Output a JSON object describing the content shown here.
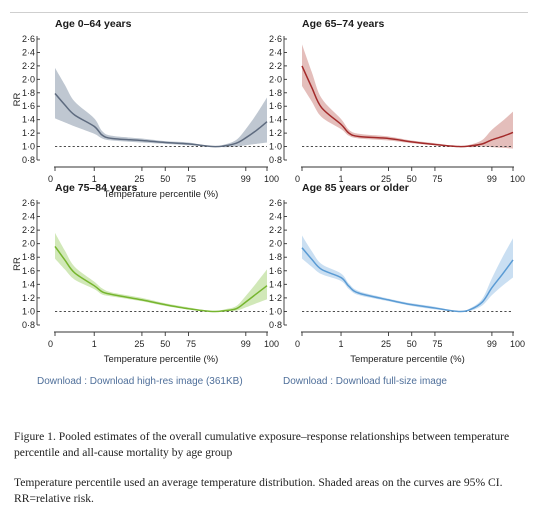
{
  "chart_data": [
    {
      "type": "line",
      "title": "Age 0–64 years",
      "xlabel": "Temperature percentile (%)",
      "ylabel": "RR",
      "x_tick_labels": [
        "0",
        "1",
        "25",
        "50",
        "75",
        "99",
        "100"
      ],
      "y_tick_labels": [
        "0·8",
        "1·0",
        "1·2",
        "1·4",
        "1·6",
        "1·8",
        "2·0",
        "2·2",
        "2·4",
        "2·6"
      ],
      "ylim": [
        0.8,
        2.6
      ],
      "reference_line": 1.0,
      "color": "#5e6b7f",
      "band_color": "#aab4c1",
      "series": [
        {
          "x": [
            0,
            0.25,
            0.5,
            1,
            5,
            10,
            25,
            50,
            75,
            85,
            90,
            95,
            99,
            99.5,
            100
          ],
          "y": [
            1.79,
            1.62,
            1.47,
            1.3,
            1.17,
            1.12,
            1.09,
            1.06,
            1.04,
            1.0,
            1.01,
            1.05,
            1.13,
            1.24,
            1.37
          ],
          "lower": [
            1.42,
            1.36,
            1.3,
            1.19,
            1.12,
            1.09,
            1.06,
            1.04,
            1.02,
            1.0,
            0.99,
            1.0,
            1.02,
            1.04,
            1.06
          ],
          "upper": [
            2.17,
            1.92,
            1.67,
            1.42,
            1.23,
            1.16,
            1.12,
            1.08,
            1.06,
            1.0,
            1.03,
            1.1,
            1.26,
            1.48,
            1.73
          ]
        }
      ]
    },
    {
      "type": "line",
      "title": "Age 65–74 years",
      "xlabel": "",
      "ylabel": "",
      "x_tick_labels": [
        "0",
        "1",
        "25",
        "50",
        "75",
        "99",
        "100"
      ],
      "y_tick_labels": [
        "0·8",
        "1·0",
        "1·2",
        "1·4",
        "1·6",
        "1·8",
        "2·0",
        "2·2",
        "2·4",
        "2·6"
      ],
      "ylim": [
        0.8,
        2.6
      ],
      "reference_line": 1.0,
      "color": "#a32a2a",
      "band_color": "#dba8a4",
      "series": [
        {
          "x": [
            0,
            0.25,
            0.5,
            1,
            5,
            10,
            25,
            50,
            75,
            85,
            90,
            95,
            99,
            99.5,
            100
          ],
          "y": [
            2.2,
            1.88,
            1.58,
            1.33,
            1.2,
            1.15,
            1.12,
            1.07,
            1.03,
            1.0,
            1.01,
            1.04,
            1.1,
            1.15,
            1.21
          ],
          "lower": [
            1.9,
            1.67,
            1.44,
            1.26,
            1.16,
            1.12,
            1.09,
            1.05,
            1.02,
            1.0,
            0.99,
            1.0,
            0.99,
            0.98,
            0.97
          ],
          "upper": [
            2.52,
            2.11,
            1.72,
            1.41,
            1.25,
            1.19,
            1.15,
            1.09,
            1.05,
            1.0,
            1.03,
            1.1,
            1.25,
            1.38,
            1.52
          ]
        }
      ]
    },
    {
      "type": "line",
      "title": "Age 75–84 years",
      "xlabel": "Temperature percentile (%)",
      "ylabel": "RR",
      "x_tick_labels": [
        "0",
        "1",
        "25",
        "50",
        "75",
        "99",
        "100"
      ],
      "y_tick_labels": [
        "0·8",
        "1·0",
        "1·2",
        "1·4",
        "1·6",
        "1·8",
        "2·0",
        "2·2",
        "2·4",
        "2·6"
      ],
      "ylim": [
        0.8,
        2.6
      ],
      "reference_line": 1.0,
      "color": "#76b52e",
      "band_color": "#c2e0a0",
      "series": [
        {
          "x": [
            0,
            0.25,
            0.5,
            1,
            5,
            10,
            25,
            50,
            75,
            85,
            90,
            95,
            99,
            99.5,
            100
          ],
          "y": [
            1.96,
            1.76,
            1.57,
            1.38,
            1.29,
            1.25,
            1.17,
            1.1,
            1.04,
            1.0,
            1.01,
            1.04,
            1.14,
            1.26,
            1.38
          ],
          "lower": [
            1.78,
            1.62,
            1.47,
            1.33,
            1.25,
            1.22,
            1.15,
            1.08,
            1.03,
            1.0,
            1.0,
            1.01,
            1.06,
            1.12,
            1.18
          ],
          "upper": [
            2.16,
            1.9,
            1.66,
            1.44,
            1.34,
            1.28,
            1.2,
            1.12,
            1.06,
            1.0,
            1.03,
            1.08,
            1.23,
            1.42,
            1.62
          ]
        }
      ]
    },
    {
      "type": "line",
      "title": "Age 85 years or older",
      "xlabel": "Temperature percentile (%)",
      "ylabel": "",
      "x_tick_labels": [
        "0",
        "1",
        "25",
        "50",
        "75",
        "99",
        "100"
      ],
      "y_tick_labels": [
        "0·8",
        "1·0",
        "1·2",
        "1·4",
        "1·6",
        "1·8",
        "2·0",
        "2·2",
        "2·4",
        "2·6"
      ],
      "ylim": [
        0.8,
        2.6
      ],
      "reference_line": 1.0,
      "color": "#5a9bd4",
      "band_color": "#b8d4ee",
      "series": [
        {
          "x": [
            0,
            0.25,
            0.5,
            1,
            5,
            10,
            25,
            50,
            75,
            85,
            90,
            95,
            99,
            99.5,
            100
          ],
          "y": [
            1.94,
            1.77,
            1.62,
            1.5,
            1.37,
            1.27,
            1.17,
            1.1,
            1.05,
            1.0,
            1.03,
            1.14,
            1.35,
            1.55,
            1.76
          ],
          "lower": [
            1.78,
            1.66,
            1.55,
            1.45,
            1.33,
            1.24,
            1.15,
            1.08,
            1.03,
            1.0,
            1.01,
            1.09,
            1.24,
            1.38,
            1.5
          ],
          "upper": [
            2.12,
            1.89,
            1.7,
            1.56,
            1.41,
            1.3,
            1.19,
            1.12,
            1.07,
            1.0,
            1.05,
            1.19,
            1.49,
            1.8,
            2.08
          ]
        }
      ]
    }
  ],
  "downloads": {
    "link1": "Download : Download high-res image (361KB)",
    "link2": "Download : Download full-size image"
  },
  "caption": {
    "title": "Figure 1. Pooled estimates of the overall cumulative exposure–response relationships between temperature percentile and all-cause mortality by age group",
    "note": "Temperature percentile used an average temperature distribution. Shaded areas on the curves are 95% CI. RR=relative risk."
  }
}
